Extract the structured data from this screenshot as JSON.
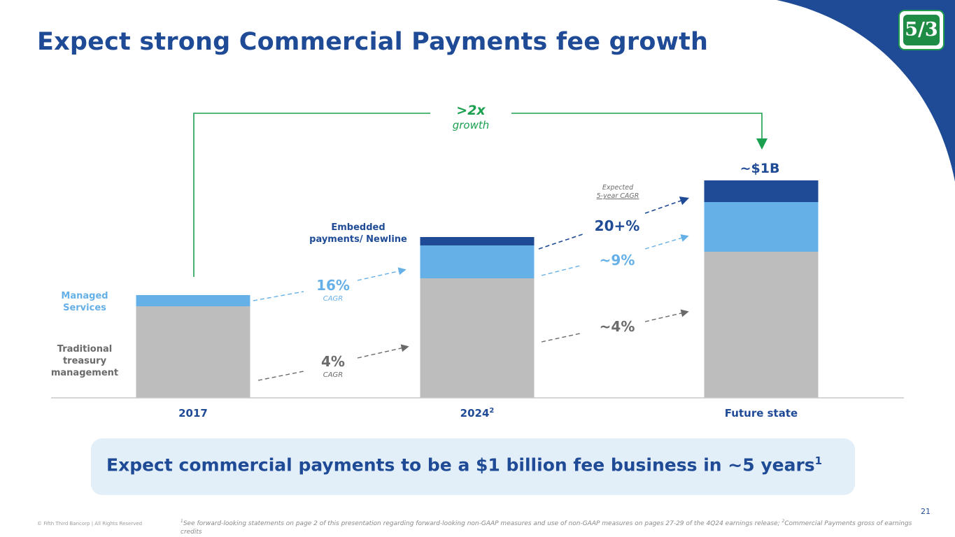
{
  "title": "Expect strong Commercial Payments fee growth",
  "growth_callout": {
    "main": ">2x",
    "sub": "growth"
  },
  "total_label": "~$1B",
  "expected_label": {
    "line1": "Expected",
    "line2": "5-year CAGR"
  },
  "segment_labels": {
    "embedded": [
      "Embedded",
      "payments/ Newline"
    ],
    "managed": [
      "Managed",
      "Services"
    ],
    "traditional": [
      "Traditional",
      "treasury",
      "management"
    ]
  },
  "cagr_labels": {
    "managed_hist": {
      "value": "16%",
      "sub": "CAGR"
    },
    "traditional_hist": {
      "value": "4%",
      "sub": "CAGR"
    },
    "embedded_future": {
      "value": "20+%"
    },
    "managed_future": {
      "value": "~9%"
    },
    "traditional_future": {
      "value": "~4%"
    }
  },
  "chart_data": {
    "type": "bar",
    "stacked": true,
    "categories": [
      "2017",
      "2024",
      "Future state"
    ],
    "category_superscripts": [
      "",
      "2",
      ""
    ],
    "series": [
      {
        "name": "Traditional treasury management",
        "values": [
          131,
          171,
          209
        ]
      },
      {
        "name": "Managed Services",
        "values": [
          16,
          47,
          71
        ]
      },
      {
        "name": "Embedded payments/ Newline",
        "values": [
          0,
          12,
          31
        ]
      }
    ],
    "ylim": [
      0,
      325
    ],
    "colors": [
      "#bdbdbd",
      "#66b0e8",
      "#1f4b96"
    ],
    "grid": false,
    "annotations": [
      "~$1B",
      ">2x growth"
    ]
  },
  "banner": {
    "text": "Expect commercial payments to be a $1 billion fee business in ~5 years",
    "sup": "1"
  },
  "footer": {
    "copyright": "© Fifth Third Bancorp | All Rights Reserved",
    "footnote_sup1": "1",
    "footnote_part1": "See forward-looking statements on page 2 of this presentation regarding forward-looking non-GAAP measures and use of non-GAAP measures on pages 27-29 of the 4Q24 earnings release; ",
    "footnote_sup2": "2",
    "footnote_part2": "Commercial Payments gross of earnings credits",
    "page_number": "21"
  },
  "logo": {
    "text": "5/3"
  }
}
